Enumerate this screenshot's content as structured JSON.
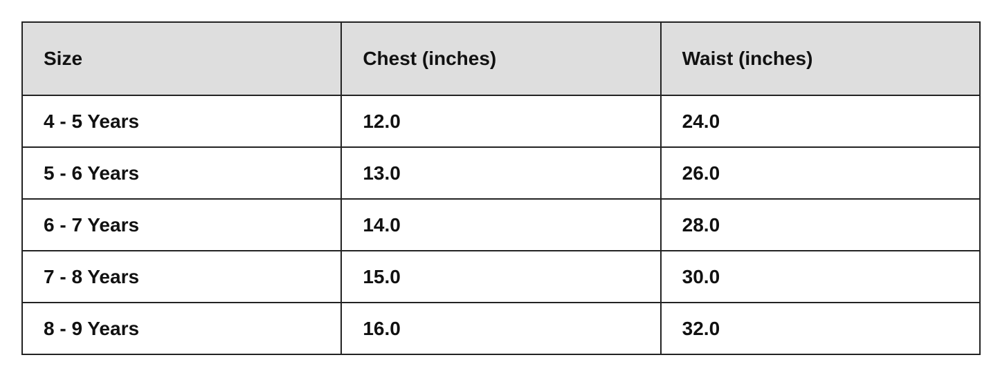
{
  "table": {
    "headers": [
      "Size",
      "Chest (inches)",
      "Waist (inches)"
    ],
    "rows": [
      [
        "4 - 5 Years",
        "12.0",
        "24.0"
      ],
      [
        "5 - 6 Years",
        "13.0",
        "26.0"
      ],
      [
        "6 - 7 Years",
        "14.0",
        "28.0"
      ],
      [
        "7 - 8 Years",
        "15.0",
        "30.0"
      ],
      [
        "8 - 9 Years",
        "16.0",
        "32.0"
      ]
    ]
  },
  "colors": {
    "header_bg": "#dedede",
    "border": "#222222"
  }
}
